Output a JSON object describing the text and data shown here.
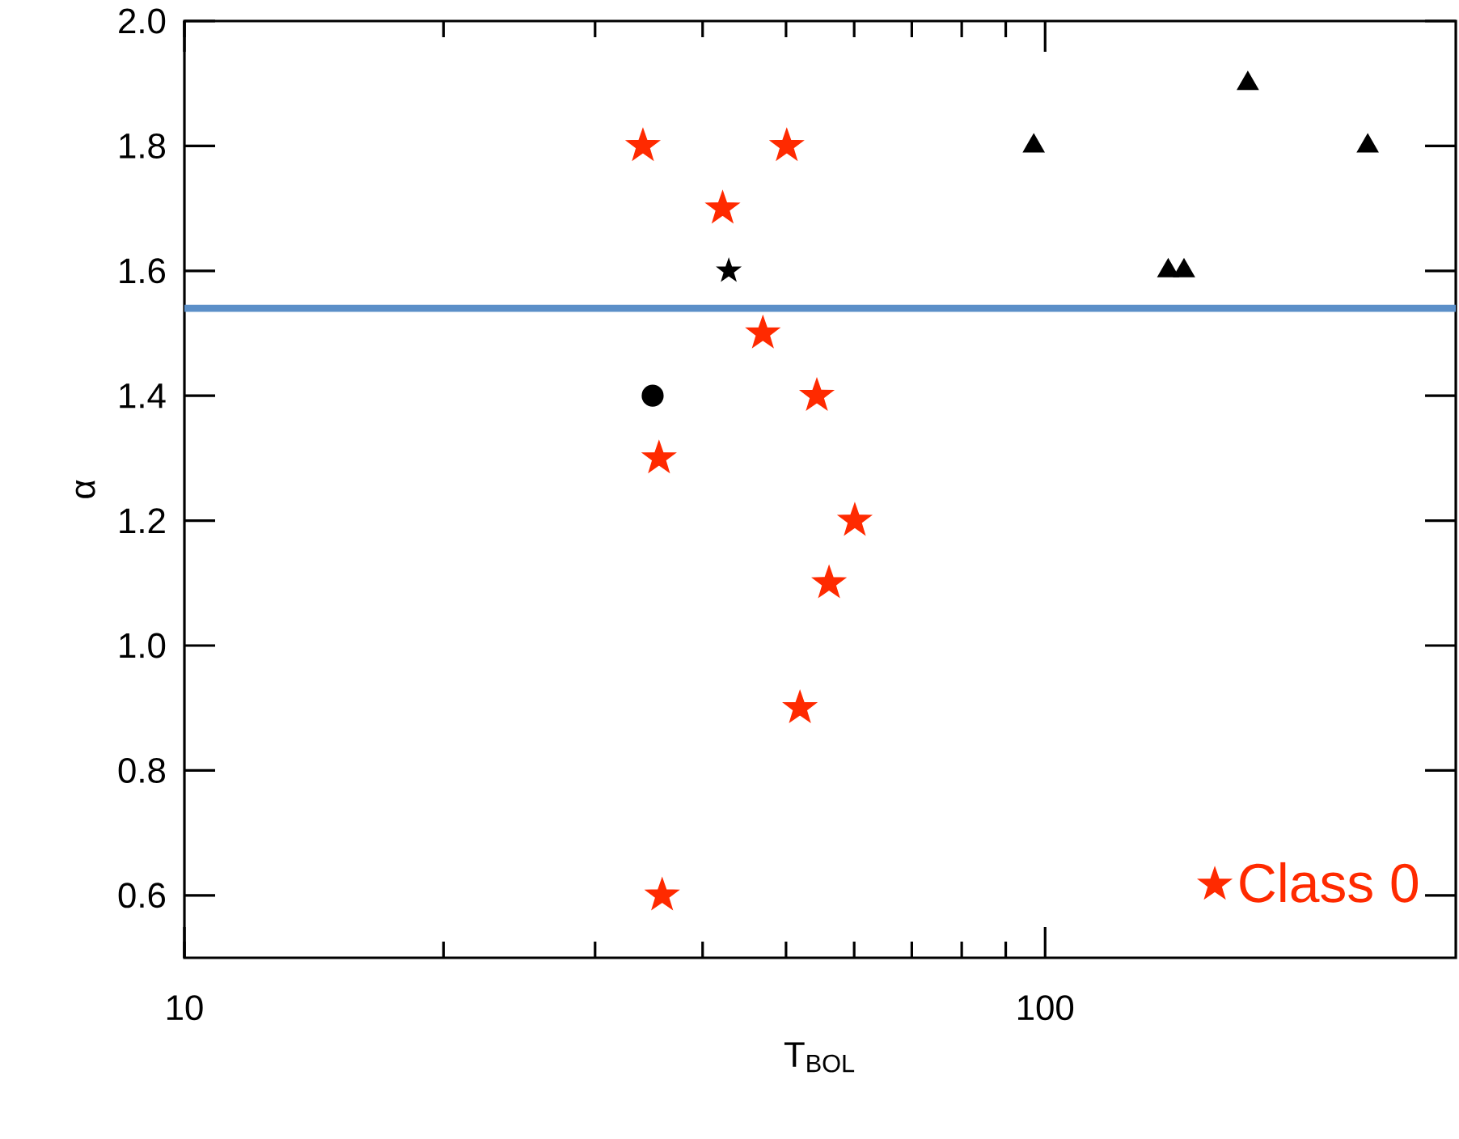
{
  "chart_data": {
    "type": "scatter",
    "xlabel": "T$_{BOL}$",
    "ylabel": "α",
    "log": "x",
    "xlim": [
      10,
      300
    ],
    "ylim": [
      0.5,
      2.0
    ],
    "xticks": [
      10,
      100
    ],
    "yticks": [
      0.6,
      0.8,
      {
        "value": 1.0,
        "label": "1.0"
      },
      1.2,
      1.4,
      1.6,
      1.8,
      {
        "value": 2.0,
        "label": "2.0"
      }
    ],
    "grid": false,
    "legend": "bottom right",
    "ref_lines": [
      {
        "axis": "y",
        "value": 1.54,
        "color": "#5b8fc8",
        "line_style": "solid"
      }
    ],
    "series": [
      {
        "name": "Class 0",
        "color": "#ff2a00",
        "marker": "star",
        "x": [
          34.1,
          50.1,
          42.2,
          47,
          54.3,
          35.6,
          60.1,
          56.1,
          51.9,
          35.9
        ],
        "values": [
          1.8,
          1.8,
          1.7,
          1.5,
          1.4,
          1.3,
          1.2,
          1.1,
          0.9,
          0.6
        ]
      },
      {
        "color": "#000000",
        "marker": "star",
        "x": [
          42.9
        ],
        "values": [
          1.6
        ]
      },
      {
        "color": "#000000",
        "marker": "circle",
        "x": [
          35.0
        ],
        "values": [
          1.4
        ]
      },
      {
        "color": "#000000",
        "marker": "triangle",
        "x": [
          97,
          172,
          139,
          145,
          237
        ],
        "values": [
          1.8,
          1.9,
          1.6,
          1.6,
          1.8
        ]
      }
    ]
  }
}
